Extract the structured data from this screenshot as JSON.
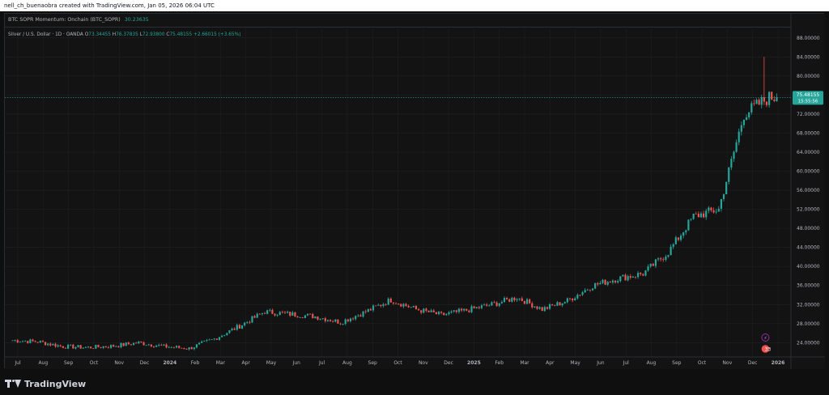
{
  "header": {
    "attribution": "nell_ch_buenaobra created with TradingView.com, Jan 05, 2026 06:04 UTC"
  },
  "indicator": {
    "label": "BTC SOPR Momentum: Onchain (BTC_SOPR)",
    "value": "30.23635"
  },
  "symbol": {
    "label": "Silver / U.S. Dollar · 1D · OANDA",
    "o_key": "O",
    "o_val": "73.34455",
    "h_key": "H",
    "h_val": "76.37835",
    "l_key": "L",
    "l_val": "72.93800",
    "c_key": "C",
    "c_val": "75.48155",
    "change": "+2.66015 (+3.65%)"
  },
  "price_tag": {
    "price": "75.48155",
    "countdown": "15:55:56"
  },
  "footer": {
    "logo_text": "TradingView"
  },
  "colors": {
    "up": "#26a69a",
    "down": "#ef5350",
    "background": "#131313",
    "grid": "#1f2125",
    "text": "#b2b5be"
  },
  "chart_data": {
    "type": "candlestick",
    "title": "Silver / U.S. Dollar · 1D · OANDA",
    "ylim": [
      21,
      90
    ],
    "y_ticks": [
      24,
      28,
      32,
      36,
      40,
      44,
      48,
      52,
      56,
      60,
      64,
      68,
      72,
      76,
      80,
      84,
      88
    ],
    "y_tick_labels": [
      "24.00000",
      "28.00000",
      "32.00000",
      "36.00000",
      "40.00000",
      "44.00000",
      "48.00000",
      "52.00000",
      "56.00000",
      "60.00000",
      "64.00000",
      "68.00000",
      "72.00000",
      "76.00000",
      "80.00000",
      "84.00000",
      "88.00000"
    ],
    "x_labels": [
      "Jul",
      "Aug",
      "Sep",
      "Oct",
      "Nov",
      "Dec",
      "2024",
      "Feb",
      "Mar",
      "Apr",
      "May",
      "Jun",
      "Jul",
      "Aug",
      "Sep",
      "Oct",
      "Nov",
      "Dec",
      "2025",
      "Feb",
      "Mar",
      "Apr",
      "May",
      "Jun",
      "Jul",
      "Aug",
      "Sep",
      "Oct",
      "Nov",
      "Dec",
      "2026"
    ],
    "x_label_bold": [
      "2024",
      "2025",
      "2026"
    ],
    "close_series_approx": [
      {
        "period": "2023-07",
        "close": 24.5
      },
      {
        "period": "2023-08",
        "close": 24.2
      },
      {
        "period": "2023-09",
        "close": 23.2
      },
      {
        "period": "2023-10",
        "close": 23.0
      },
      {
        "period": "2023-11",
        "close": 23.3
      },
      {
        "period": "2023-12",
        "close": 24.0
      },
      {
        "period": "2024-01",
        "close": 23.2
      },
      {
        "period": "2024-02",
        "close": 22.8
      },
      {
        "period": "2024-03",
        "close": 24.8
      },
      {
        "period": "2024-04",
        "close": 27.5
      },
      {
        "period": "2024-05",
        "close": 30.5
      },
      {
        "period": "2024-06",
        "close": 30.0
      },
      {
        "period": "2024-07",
        "close": 29.5
      },
      {
        "period": "2024-08",
        "close": 28.3
      },
      {
        "period": "2024-09",
        "close": 30.5
      },
      {
        "period": "2024-10",
        "close": 33.0
      },
      {
        "period": "2024-11",
        "close": 31.0
      },
      {
        "period": "2024-12",
        "close": 29.8
      },
      {
        "period": "2025-01",
        "close": 30.8
      },
      {
        "period": "2025-02",
        "close": 32.0
      },
      {
        "period": "2025-03",
        "close": 33.5
      },
      {
        "period": "2025-04",
        "close": 31.0
      },
      {
        "period": "2025-05",
        "close": 32.8
      },
      {
        "period": "2025-06",
        "close": 36.0
      },
      {
        "period": "2025-07",
        "close": 37.5
      },
      {
        "period": "2025-08",
        "close": 38.5
      },
      {
        "period": "2025-09",
        "close": 43.0
      },
      {
        "period": "2025-10",
        "close": 50.5
      },
      {
        "period": "2025-11",
        "close": 52.0
      },
      {
        "period": "2025-12",
        "close": 72.0
      },
      {
        "period": "2026-01",
        "close": 75.48
      }
    ],
    "last_price": 75.48155,
    "high_spike": 84.0,
    "markers": [
      {
        "type": "event",
        "label": "lightning"
      },
      {
        "type": "earnings",
        "label": "33"
      }
    ]
  }
}
